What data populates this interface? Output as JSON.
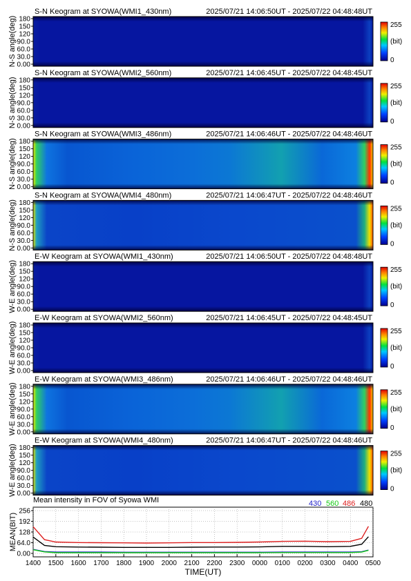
{
  "panels": [
    {
      "title": "S-N Keogram at SYOWA(WMI1_430nm)",
      "time_range": "2025/07/21 14:06:50UT - 2025/07/22 04:48:48UT",
      "ylabel": "N-S angle(deg)",
      "brightness": "very-dim"
    },
    {
      "title": "S-N Keogram at SYOWA(WMI2_560nm)",
      "time_range": "2025/07/21 14:06:45UT - 2025/07/22 04:48:45UT",
      "ylabel": "N-S angle(deg)",
      "brightness": "very-dim"
    },
    {
      "title": "S-N Keogram at SYOWA(WMI3_486nm)",
      "time_range": "2025/07/21 14:06:46UT - 2025/07/22 04:48:46UT",
      "ylabel": "N-S angle(deg)",
      "brightness": "bright"
    },
    {
      "title": "S-N Keogram at SYOWA(WMI4_480nm)",
      "time_range": "2025/07/21 14:06:47UT - 2025/07/22 04:48:46UT",
      "ylabel": "N-S angle(deg)",
      "brightness": "medium"
    },
    {
      "title": "E-W Keogram at SYOWA(WMI1_430nm)",
      "time_range": "2025/07/21 14:06:50UT - 2025/07/22 04:48:48UT",
      "ylabel": "W-E angle(deg)",
      "brightness": "very-dim"
    },
    {
      "title": "E-W Keogram at SYOWA(WMI2_560nm)",
      "time_range": "2025/07/21 14:06:45UT - 2025/07/22 04:48:45UT",
      "ylabel": "W-E angle(deg)",
      "brightness": "very-dim"
    },
    {
      "title": "E-W Keogram at SYOWA(WMI3_486nm)",
      "time_range": "2025/07/21 14:06:46UT - 2025/07/22 04:48:46UT",
      "ylabel": "W-E angle(deg)",
      "brightness": "bright"
    },
    {
      "title": "E-W Keogram at SYOWA(WMI4_480nm)",
      "time_range": "2025/07/21 14:06:47UT - 2025/07/22 04:48:46UT",
      "ylabel": "W-E angle(deg)",
      "brightness": "medium"
    }
  ],
  "angle_ticks": [
    "180",
    "150",
    "120",
    "90.0",
    "60.0",
    "30.0",
    "0.00"
  ],
  "colorbar": {
    "max_label": "255",
    "unit_label": "(bit)",
    "min_label": "0"
  },
  "mean_panel": {
    "title": "Mean intensity in FOV of Syowa WMI",
    "legend": [
      {
        "label": "430",
        "color": "#1e1ec8"
      },
      {
        "label": "560",
        "color": "#14c814"
      },
      {
        "label": "486",
        "color": "#dc1e1e"
      },
      {
        "label": "480",
        "color": "#000000"
      }
    ],
    "ylabel": "MEAN(BIT)",
    "yticks": [
      "256",
      "192",
      "128",
      "64.0",
      "0.00"
    ],
    "xlabel": "TIME(UT)",
    "xticks": [
      "1400",
      "1500",
      "1600",
      "1700",
      "1800",
      "1900",
      "2000",
      "2100",
      "2200",
      "2300",
      "0000",
      "0100",
      "0200",
      "0300",
      "0400",
      "0500"
    ]
  },
  "chart_data": {
    "type": "line",
    "title": "Mean intensity in FOV of Syowa WMI",
    "xlabel": "TIME(UT)",
    "ylabel": "MEAN(BIT)",
    "x": [
      "1400",
      "1430",
      "1500",
      "1600",
      "1700",
      "1800",
      "1900",
      "2000",
      "2100",
      "2200",
      "2300",
      "0000",
      "0100",
      "0200",
      "0300",
      "0400",
      "0430",
      "0448"
    ],
    "ylim": [
      0,
      256
    ],
    "series": [
      {
        "name": "430",
        "color": "#1e1ec8",
        "values": [
          24,
          11,
          8,
          8,
          8,
          7,
          7,
          7,
          7,
          7,
          7,
          7,
          8,
          8,
          8,
          8,
          10,
          20
        ]
      },
      {
        "name": "560",
        "color": "#14c814",
        "values": [
          22,
          9,
          4,
          4,
          4,
          4,
          4,
          4,
          4,
          4,
          4,
          4,
          5,
          5,
          5,
          5,
          8,
          18
        ]
      },
      {
        "name": "486",
        "color": "#dc1e1e",
        "values": [
          160,
          82,
          68,
          65,
          64,
          63,
          62,
          63,
          65,
          65,
          66,
          68,
          72,
          73,
          70,
          72,
          90,
          162
        ]
      },
      {
        "name": "480",
        "color": "#000000",
        "values": [
          98,
          48,
          40,
          38,
          37,
          36,
          36,
          36,
          37,
          38,
          38,
          39,
          42,
          42,
          40,
          42,
          55,
          100
        ]
      }
    ]
  }
}
